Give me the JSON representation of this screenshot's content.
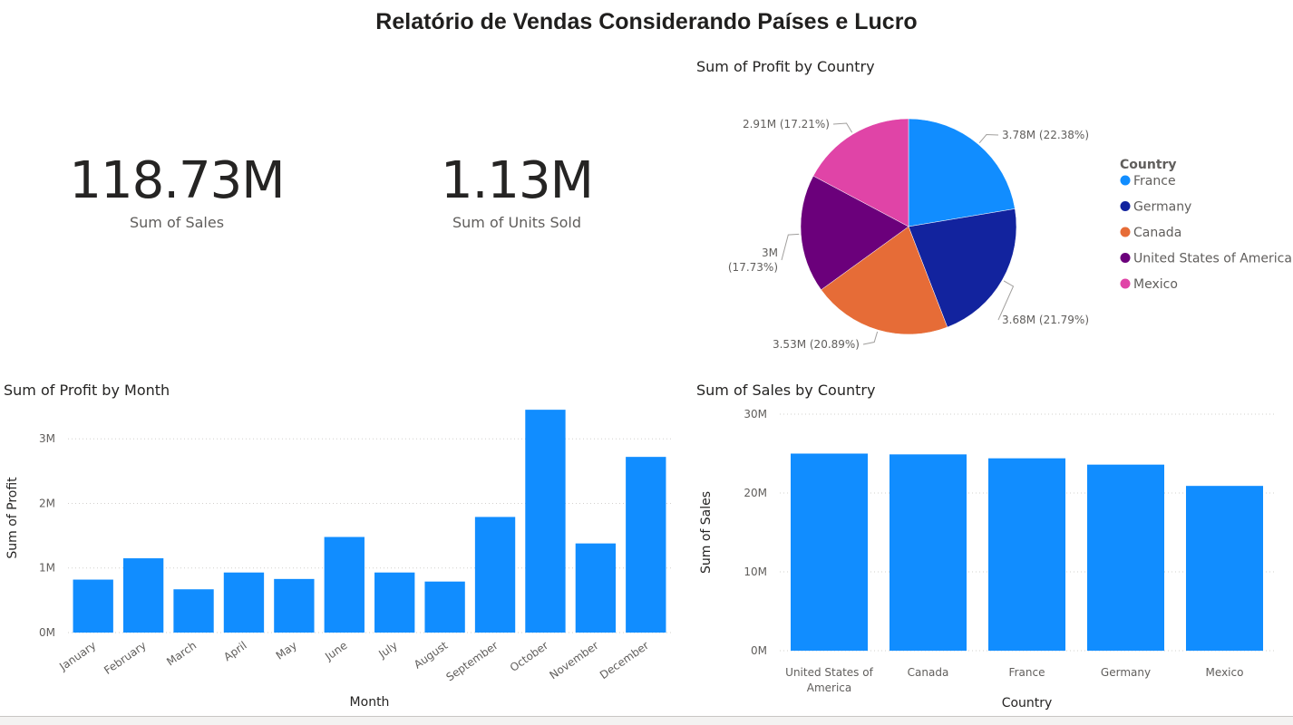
{
  "report_title": "Relatório de Vendas Considerando Países e Lucro",
  "cards": [
    {
      "value": "118.73M",
      "label": "Sum of  Sales"
    },
    {
      "value": "1.13M",
      "label": "Sum of Units Sold"
    }
  ],
  "colors": {
    "primary_bar": "#118dff",
    "text": "#252423",
    "muted": "#605e5c",
    "grid": "#c8c6c4"
  },
  "chart_data": [
    {
      "type": "pie",
      "title": "Sum of Profit by Country",
      "legend_title": "Country",
      "legend_position": "right",
      "categories": [
        "France",
        "Germany",
        "Canada",
        "United States of America",
        "Mexico"
      ],
      "values": [
        3.78,
        3.68,
        3.53,
        3.0,
        2.91
      ],
      "percents": [
        22.38,
        21.79,
        20.89,
        17.73,
        17.21
      ],
      "data_labels": [
        "3.78M (22.38%)",
        "3.68M (21.79%)",
        "3.53M (20.89%)",
        "3M (17.73%)",
        "2.91M (17.21%)"
      ],
      "colors": [
        "#118dff",
        "#12239e",
        "#e66c37",
        "#6b007b",
        "#e044a7"
      ]
    },
    {
      "type": "bar",
      "title": "Sum of Profit by Month",
      "xlabel": "Month",
      "ylabel": "Sum of Profit",
      "categories": [
        "January",
        "February",
        "March",
        "April",
        "May",
        "June",
        "July",
        "August",
        "September",
        "October",
        "November",
        "December"
      ],
      "values": [
        0.82,
        1.15,
        0.67,
        0.93,
        0.83,
        1.48,
        0.93,
        0.79,
        1.79,
        3.45,
        1.38,
        2.72
      ],
      "unit": "M",
      "ylim": [
        0,
        3.55
      ],
      "yticks": [
        0,
        1,
        2,
        3
      ],
      "ytick_labels": [
        "0M",
        "1M",
        "2M",
        "3M"
      ],
      "grid": true
    },
    {
      "type": "bar",
      "title": "Sum of Sales by Country",
      "xlabel": "Country",
      "ylabel": "Sum of Sales",
      "categories": [
        "United States of America",
        "Canada",
        "France",
        "Germany",
        "Mexico"
      ],
      "values": [
        25.0,
        24.9,
        24.4,
        23.6,
        20.9
      ],
      "unit": "M",
      "ylim": [
        0,
        30
      ],
      "yticks": [
        0,
        10,
        20,
        30
      ],
      "ytick_labels": [
        "0M",
        "10M",
        "20M",
        "30M"
      ],
      "grid": true
    }
  ]
}
